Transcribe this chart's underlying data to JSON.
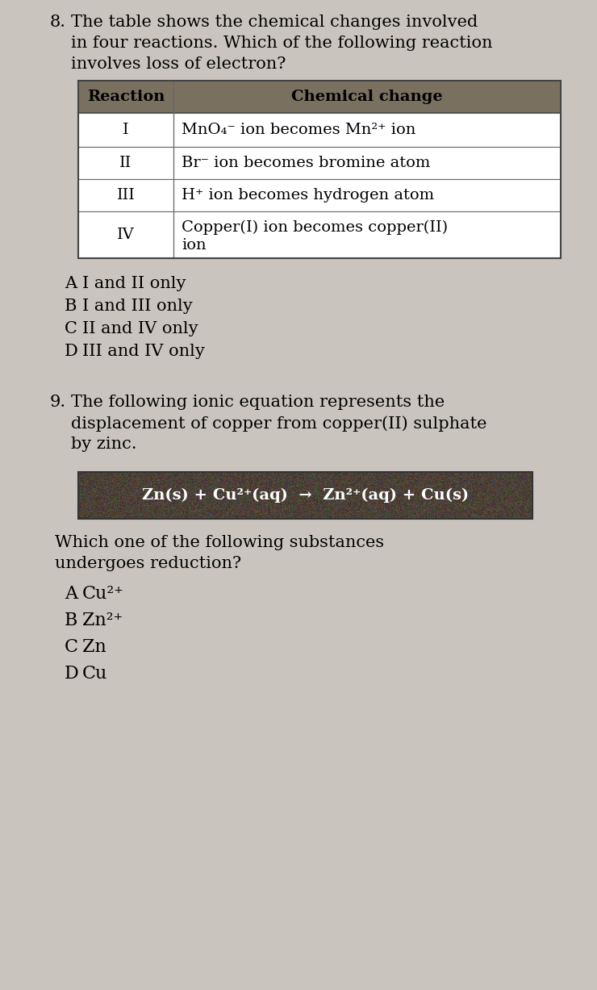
{
  "page_bg": "#c9c5be",
  "q8_number": "8.",
  "q8_text_line1": "The table shows the chemical changes involved",
  "q8_text_line2": "in four reactions. Which of the following reaction",
  "q8_text_line3": "involves loss of electron?",
  "table_header_col1": "Reaction",
  "table_header_col2": "Chemical change",
  "table_header_bg": "#7a7060",
  "table_rows": [
    [
      "I",
      "MnO₄⁻ ion becomes Mn²⁺ ion"
    ],
    [
      "II",
      "Br⁻ ion becomes bromine atom"
    ],
    [
      "III",
      "H⁺ ion becomes hydrogen atom"
    ],
    [
      "IV",
      "Copper(I) ion becomes copper(II)\nion"
    ]
  ],
  "q8_options": [
    [
      "A",
      "I and II only"
    ],
    [
      "B",
      "I and III only"
    ],
    [
      "C",
      "II and IV only"
    ],
    [
      "D",
      "III and IV only"
    ]
  ],
  "q9_number": "9.",
  "q9_text_line1": "The following ionic equation represents the",
  "q9_text_line2": "displacement of copper from copper(II) sulphate",
  "q9_text_line3": "by zinc.",
  "equation_text": "Zn(s) + Cu²⁺(aq)  →  Zn²⁺(aq) + Cu(s)",
  "equation_bg": "#4a4030",
  "q9_question_line1": "Which one of the following substances",
  "q9_question_line2": "undergoes reduction?",
  "q9_options": [
    [
      "A",
      "Cu²⁺"
    ],
    [
      "B",
      "Zn²⁺"
    ],
    [
      "C",
      "Zn"
    ],
    [
      "D",
      "Cu"
    ]
  ],
  "font_size_body": 15,
  "font_size_table": 14,
  "font_size_options": 15
}
